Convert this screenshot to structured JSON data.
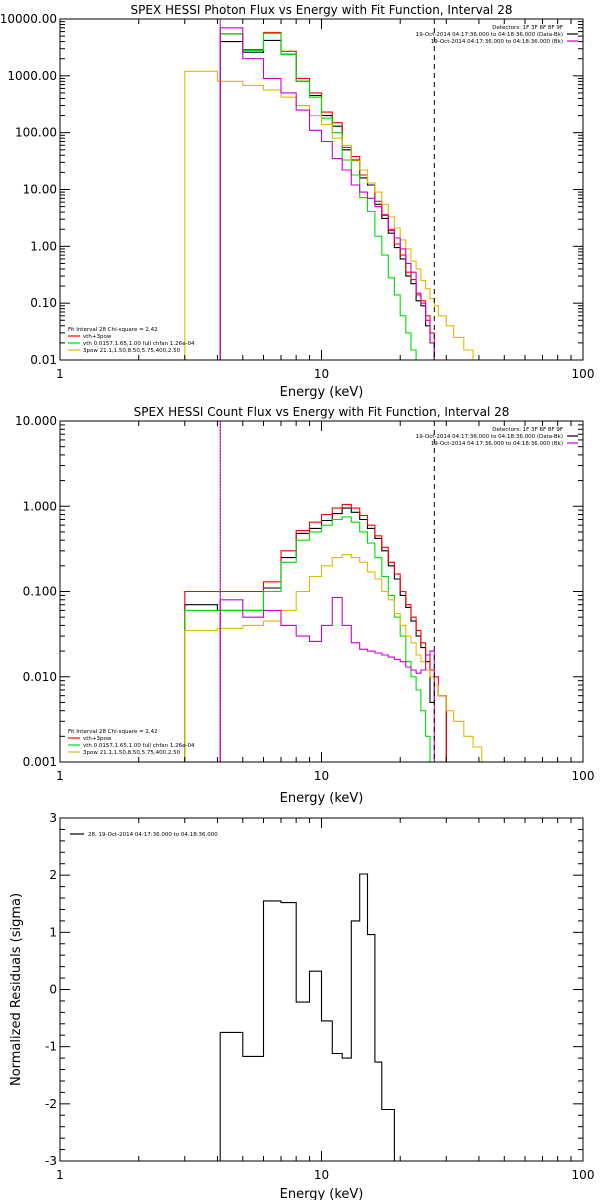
{
  "chart_data": [
    {
      "type": "line",
      "title": "SPEX HESSI Photon Flux vs Energy with Fit Function, Interval 28",
      "xlabel": "Energy (keV)",
      "ylabel": "",
      "xscale": "log",
      "yscale": "log",
      "xlim": [
        1,
        100
      ],
      "ylim": [
        0.01,
        10000
      ],
      "x_ticks": [
        "1",
        "10",
        "100"
      ],
      "y_ticks": [
        "0.01",
        "0.10",
        "1.00",
        "10.00",
        "100.00",
        "1000.00",
        "10000.00"
      ],
      "header_lines": [
        "Detectors: 1F 3F 6F 8F 9F",
        "19-Oct-2014 04:17:36.000 to 04:18:36.000 (Data-Bk)",
        "19-Oct-2014 04:17:36.000 to 04:18:36.000 (Bk)"
      ],
      "legend": [
        "Fit Interval 28   Chi-square = 2.42",
        "vth+3pow",
        "vth 0.0157,1.65,1.00  full chfan 1.26e-04",
        "3pow 21.1,1.50,8.50,5.75,400,2.50"
      ],
      "vlines": [
        {
          "x": 4.1,
          "style": "solid",
          "color": "#cc00cc"
        },
        {
          "x": 27,
          "style": "dashed",
          "color": "#000000"
        }
      ],
      "series": [
        {
          "name": "19-Oct-2014 04:17:36.000 to 04:18:36.000 (Data-Bk)",
          "color": "#000000",
          "edges": [
            4.1,
            5,
            6,
            7,
            8,
            9,
            10,
            11,
            12,
            13,
            14,
            15,
            16,
            17,
            18,
            19,
            20,
            21,
            22,
            23,
            24,
            25,
            26,
            27
          ],
          "values": [
            4000,
            2600,
            4200,
            2400,
            800,
            450,
            200,
            130,
            50,
            33,
            16,
            12,
            5.5,
            3.1,
            1.7,
            0.95,
            0.6,
            0.3,
            0.22,
            0.11,
            0.09,
            0.04,
            0.02
          ]
        },
        {
          "name": "vth+3pow",
          "color": "#ff0000",
          "edges": [
            4.1,
            5,
            6,
            7,
            8,
            9,
            10,
            11,
            12,
            13,
            14,
            15,
            16,
            17,
            18,
            19,
            20,
            21,
            22,
            23,
            24,
            25,
            26,
            27
          ],
          "values": [
            5500,
            2900,
            5800,
            2700,
            900,
            500,
            230,
            150,
            55,
            38,
            18,
            13,
            6.2,
            3.6,
            1.9,
            1.1,
            0.7,
            0.35,
            0.26,
            0.14,
            0.11,
            0.06,
            0.03
          ]
        },
        {
          "name": "vth 0.0157,1.65,1.00  full chfan 1.26e-04",
          "color": "#00dd00",
          "edges": [
            4.1,
            5,
            6,
            7,
            8,
            9,
            10,
            11,
            12,
            13,
            14,
            15,
            16,
            17,
            18,
            19,
            20,
            21,
            22,
            23,
            24,
            25,
            26
          ],
          "values": [
            5500,
            2800,
            5600,
            2400,
            800,
            420,
            180,
            100,
            33,
            18,
            7.2,
            4.1,
            1.5,
            0.7,
            0.28,
            0.14,
            0.06,
            0.03,
            0.015,
            0.01,
            0.01,
            0.01
          ]
        },
        {
          "name": "3pow 21.1,1.50,8.50,5.75,400,2.50",
          "color": "#ddbb00",
          "edges": [
            3,
            4,
            5,
            6,
            7,
            8,
            9,
            10,
            11,
            12,
            13,
            14,
            15,
            16,
            17,
            18,
            19,
            20,
            21,
            22,
            23,
            24,
            25,
            26,
            27,
            28,
            30,
            32,
            35,
            38,
            41
          ],
          "values": [
            1200,
            800,
            680,
            560,
            420,
            300,
            200,
            140,
            80,
            60,
            32,
            22,
            13,
            9,
            5.5,
            3.3,
            2.1,
            1.3,
            0.9,
            0.55,
            0.4,
            0.25,
            0.18,
            0.12,
            0.09,
            0.06,
            0.04,
            0.025,
            0.015,
            0.01
          ]
        },
        {
          "name": "19-Oct-2014 04:17:36.000 to 04:18:36.000 (Bk)",
          "color": "#cc00cc",
          "edges": [
            4.1,
            5,
            6,
            7,
            8,
            9,
            10,
            11,
            12,
            13,
            14,
            15,
            16,
            17,
            18,
            19,
            20,
            21,
            22,
            23,
            24,
            25,
            26,
            27
          ],
          "values": [
            7000,
            2000,
            900,
            500,
            250,
            110,
            70,
            35,
            22,
            12,
            9,
            7,
            5,
            3.5,
            2,
            1.4,
            0.9,
            0.5,
            0.35,
            0.15,
            0.1,
            0.05,
            0.02
          ]
        }
      ]
    },
    {
      "type": "line",
      "title": "SPEX HESSI Count Flux vs Energy with Fit Function, Interval 28",
      "xlabel": "Energy (keV)",
      "ylabel": "",
      "xscale": "log",
      "yscale": "log",
      "xlim": [
        1,
        100
      ],
      "ylim": [
        0.001,
        10
      ],
      "x_ticks": [
        "1",
        "10",
        "100"
      ],
      "y_ticks": [
        "0.001",
        "0.010",
        "0.100",
        "1.000",
        "10.000"
      ],
      "header_lines": [
        "Detectors: 1F 3F 6F 8F 9F",
        "19-Oct-2014 04:17:36.000 to 04:18:36.000 (Data-Bk)",
        "19-Oct-2014 04:17:36.000 to 04:18:36.000 (Bk)"
      ],
      "legend": [
        "Fit Interval 28   Chi-square = 2.42",
        "vth+3pow",
        "vth 0.0157,1.65,1.00  full chfan 1.26e-04",
        "3pow 21.1,1.50,8.50,5.75,400,2.50"
      ],
      "vlines": [
        {
          "x": 4.1,
          "style": "dotted",
          "color": "#000000"
        },
        {
          "x": 4.1,
          "style": "solid",
          "color": "#cc00cc"
        },
        {
          "x": 27,
          "style": "dashed",
          "color": "#000000"
        }
      ],
      "series": [
        {
          "name": "19-Oct-2014 04:17:36.000 to 04:18:36.000 (Data-Bk)",
          "color": "#000000",
          "edges": [
            3,
            4,
            5,
            6,
            7,
            8,
            9,
            10,
            11,
            12,
            13,
            14,
            15,
            16,
            17,
            18,
            19,
            20,
            21,
            22,
            23,
            24,
            25,
            26,
            27,
            28,
            30
          ],
          "values": [
            0.07,
            0.06,
            0.06,
            0.11,
            0.25,
            0.48,
            0.55,
            0.68,
            0.82,
            0.95,
            0.85,
            0.7,
            0.55,
            0.42,
            0.3,
            0.2,
            0.14,
            0.09,
            0.065,
            0.045,
            0.03,
            0.022,
            0.015,
            0.005,
            0.008,
            0.006
          ]
        },
        {
          "name": "vth+3pow",
          "color": "#ff0000",
          "edges": [
            3,
            4,
            5,
            6,
            7,
            8,
            9,
            10,
            11,
            12,
            13,
            14,
            15,
            16,
            17,
            18,
            19,
            20,
            21,
            22,
            23,
            24,
            25,
            26,
            27,
            28,
            30
          ],
          "values": [
            0.1,
            0.1,
            0.1,
            0.13,
            0.3,
            0.52,
            0.65,
            0.8,
            0.95,
            1.05,
            0.95,
            0.78,
            0.6,
            0.45,
            0.33,
            0.22,
            0.16,
            0.1,
            0.07,
            0.05,
            0.035,
            0.025,
            0.018,
            0.012,
            0.01,
            0.006
          ]
        },
        {
          "name": "vth 0.0157,1.65,1.00  full chfan 1.26e-04",
          "color": "#00dd00",
          "edges": [
            3,
            4,
            5,
            6,
            7,
            8,
            9,
            10,
            11,
            12,
            13,
            14,
            15,
            16,
            17,
            18,
            19,
            20,
            21,
            22,
            23,
            24,
            25,
            26
          ],
          "values": [
            0.06,
            0.06,
            0.06,
            0.1,
            0.22,
            0.4,
            0.5,
            0.6,
            0.7,
            0.75,
            0.65,
            0.5,
            0.37,
            0.25,
            0.15,
            0.09,
            0.05,
            0.03,
            0.015,
            0.01,
            0.007,
            0.004,
            0.002
          ]
        },
        {
          "name": "3pow 21.1,1.50,8.50,5.75,400,2.50",
          "color": "#ddbb00",
          "edges": [
            3,
            4,
            5,
            6,
            7,
            8,
            9,
            10,
            11,
            12,
            13,
            14,
            15,
            16,
            17,
            18,
            19,
            20,
            21,
            22,
            23,
            24,
            25,
            26,
            27,
            28,
            30,
            32,
            35,
            38,
            41,
            45
          ],
          "values": [
            0.035,
            0.037,
            0.04,
            0.045,
            0.06,
            0.1,
            0.15,
            0.2,
            0.25,
            0.27,
            0.25,
            0.22,
            0.17,
            0.14,
            0.1,
            0.08,
            0.055,
            0.04,
            0.03,
            0.025,
            0.018,
            0.015,
            0.012,
            0.01,
            0.008,
            0.006,
            0.004,
            0.003,
            0.002,
            0.0015,
            0.001
          ]
        },
        {
          "name": "19-Oct-2014 04:17:36.000 to 04:18:36.000 (Bk)",
          "color": "#cc00cc",
          "edges": [
            4.1,
            5,
            6,
            7,
            8,
            9,
            10,
            11,
            12,
            13,
            14,
            15,
            16,
            17,
            18,
            19,
            20,
            21,
            22,
            23,
            24,
            25,
            26,
            27
          ],
          "values": [
            0.08,
            0.05,
            0.06,
            0.04,
            0.03,
            0.026,
            0.04,
            0.085,
            0.04,
            0.025,
            0.021,
            0.02,
            0.019,
            0.018,
            0.017,
            0.016,
            0.015,
            0.013,
            0.012,
            0.011,
            0.012,
            0.018,
            0.02
          ]
        }
      ]
    },
    {
      "type": "line",
      "title": "",
      "xlabel": "Energy (keV)",
      "ylabel": "Normalized Residuals (sigma)",
      "xscale": "log",
      "yscale": "linear",
      "xlim": [
        1,
        100
      ],
      "ylim": [
        -3,
        3
      ],
      "x_ticks": [
        "1",
        "10",
        "100"
      ],
      "y_ticks": [
        "-3",
        "-2",
        "-1",
        "0",
        "1",
        "2",
        "3"
      ],
      "legend": [
        "28, 19-Oct-2014 04:17:36.000 to 04:18:36.000"
      ],
      "series": [
        {
          "name": "28, 19-Oct-2014 04:17:36.000 to 04:18:36.000",
          "color": "#000000",
          "edges": [
            4.1,
            5,
            6,
            7,
            8,
            9,
            10,
            11,
            12,
            13,
            14,
            15,
            16,
            17,
            18,
            19,
            20,
            21,
            22,
            23,
            24,
            25,
            26,
            27
          ],
          "values": [
            -0.75,
            -1.17,
            1.55,
            1.52,
            -0.22,
            0.32,
            -0.55,
            -1.12,
            -1.2,
            1.2,
            2.02,
            0.96,
            -1.27,
            -2.1,
            -2.1,
            -3,
            -3,
            -3,
            -3,
            -3,
            -3,
            -3,
            -3
          ]
        }
      ]
    }
  ]
}
